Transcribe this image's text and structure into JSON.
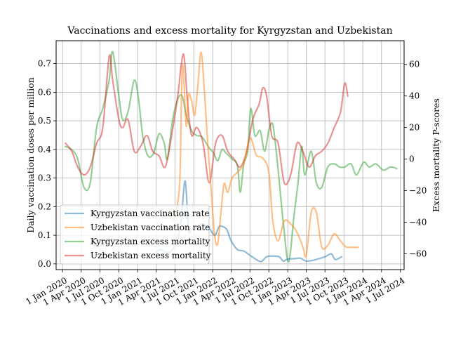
{
  "chart_data": {
    "type": "line",
    "title": "Vaccinations and excess mortality for Kyrgyzstan and Uzbekistan",
    "ylabel_left": "Daily vaccination doses per million",
    "ylabel_right": "Excess mortality P-scores",
    "xlim": [
      "2019-12-01",
      "2024-07-20"
    ],
    "ylim_left": [
      -0.02,
      0.78
    ],
    "ylim_right": [
      -70,
      75
    ],
    "x_ticks": [
      {
        "date": "2020-01-01",
        "label": "1 Jan 2020"
      },
      {
        "date": "2020-04-01",
        "label": "1 Apr 2020"
      },
      {
        "date": "2020-07-01",
        "label": "1 Jul 2020"
      },
      {
        "date": "2020-10-01",
        "label": "1 Oct 2020"
      },
      {
        "date": "2021-01-01",
        "label": "1 Jan 2021"
      },
      {
        "date": "2021-04-01",
        "label": "1 Apr 2021"
      },
      {
        "date": "2021-07-01",
        "label": "1 Jul 2021"
      },
      {
        "date": "2021-10-01",
        "label": "1 Oct 2021"
      },
      {
        "date": "2022-01-01",
        "label": "1 Jan 2022"
      },
      {
        "date": "2022-04-01",
        "label": "1 Apr 2022"
      },
      {
        "date": "2022-07-01",
        "label": "1 Jul 2022"
      },
      {
        "date": "2022-10-01",
        "label": "1 Oct 2022"
      },
      {
        "date": "2023-01-01",
        "label": "1 Jan 2023"
      },
      {
        "date": "2023-04-01",
        "label": "1 Apr 2023"
      },
      {
        "date": "2023-07-01",
        "label": "1 Jul 2023"
      },
      {
        "date": "2023-10-01",
        "label": "1 Oct 2023"
      },
      {
        "date": "2024-01-01",
        "label": "1 Jan 2024"
      },
      {
        "date": "2024-04-01",
        "label": "1 Apr 2024"
      },
      {
        "date": "2024-07-01",
        "label": "1 Jul 2024"
      }
    ],
    "y_ticks_left": [
      {
        "value": 0.0,
        "label": "0.0"
      },
      {
        "value": 0.1,
        "label": "0.1"
      },
      {
        "value": 0.2,
        "label": "0.2"
      },
      {
        "value": 0.3,
        "label": "0.3"
      },
      {
        "value": 0.4,
        "label": "0.4"
      },
      {
        "value": 0.5,
        "label": "0.5"
      },
      {
        "value": 0.6,
        "label": "0.6"
      },
      {
        "value": 0.7,
        "label": "0.7"
      }
    ],
    "y_ticks_right": [
      {
        "value": -60,
        "label": "−60"
      },
      {
        "value": -40,
        "label": "−40"
      },
      {
        "value": -20,
        "label": "−20"
      },
      {
        "value": 0,
        "label": "0"
      },
      {
        "value": 20,
        "label": "20"
      },
      {
        "value": 40,
        "label": "40"
      },
      {
        "value": 60,
        "label": "60"
      }
    ],
    "grid": true,
    "legend": {
      "placement": "lower-left"
    },
    "series": [
      {
        "name": "Kyrgyzstan vaccination rate",
        "axis": "left",
        "color": "#1f77b4",
        "points": [
          [
            "2021-03-20",
            0.03
          ],
          [
            "2021-04-20",
            0.05
          ],
          [
            "2021-05-20",
            0.04
          ],
          [
            "2021-06-20",
            0.05
          ],
          [
            "2021-07-15",
            0.09
          ],
          [
            "2021-08-01",
            0.16
          ],
          [
            "2021-08-20",
            0.29
          ],
          [
            "2021-09-05",
            0.12
          ],
          [
            "2021-09-20",
            0.12
          ],
          [
            "2021-10-15",
            0.13
          ],
          [
            "2021-11-10",
            0.14
          ],
          [
            "2021-12-10",
            0.13
          ],
          [
            "2022-01-10",
            0.1
          ],
          [
            "2022-02-01",
            0.13
          ],
          [
            "2022-02-20",
            0.13
          ],
          [
            "2022-03-10",
            0.12
          ],
          [
            "2022-04-01",
            0.08
          ],
          [
            "2022-05-01",
            0.05
          ],
          [
            "2022-06-01",
            0.045
          ],
          [
            "2022-07-01",
            0.03
          ],
          [
            "2022-08-01",
            0.015
          ],
          [
            "2022-08-25",
            0.008
          ],
          [
            "2022-09-20",
            0.025
          ],
          [
            "2022-10-20",
            0.027
          ],
          [
            "2022-11-20",
            0.025
          ],
          [
            "2022-12-10",
            0.01
          ],
          [
            "2023-01-01",
            0.017
          ],
          [
            "2023-02-01",
            0.018
          ],
          [
            "2023-03-01",
            0.02
          ],
          [
            "2023-04-01",
            0.01
          ],
          [
            "2023-05-01",
            0.012
          ],
          [
            "2023-06-01",
            0.018
          ],
          [
            "2023-07-01",
            0.025
          ],
          [
            "2023-08-01",
            0.035
          ],
          [
            "2023-08-20",
            0.015
          ],
          [
            "2023-09-20",
            0.025
          ]
        ]
      },
      {
        "name": "Uzbekistan vaccination rate",
        "axis": "left",
        "color": "#ff7f0e",
        "points": [
          [
            "2021-06-20",
            0.15
          ],
          [
            "2021-07-10",
            0.2
          ],
          [
            "2021-07-25",
            0.3
          ],
          [
            "2021-08-05",
            0.68
          ],
          [
            "2021-08-15",
            0.62
          ],
          [
            "2021-08-25",
            0.48
          ],
          [
            "2021-09-05",
            0.59
          ],
          [
            "2021-09-20",
            0.57
          ],
          [
            "2021-10-05",
            0.52
          ],
          [
            "2021-10-20",
            0.62
          ],
          [
            "2021-11-05",
            0.74
          ],
          [
            "2021-11-20",
            0.62
          ],
          [
            "2021-12-05",
            0.45
          ],
          [
            "2021-12-25",
            0.25
          ],
          [
            "2022-01-10",
            0.1
          ],
          [
            "2022-01-25",
            0.07
          ],
          [
            "2022-02-10",
            0.18
          ],
          [
            "2022-02-25",
            0.28
          ],
          [
            "2022-03-15",
            0.25
          ],
          [
            "2022-04-05",
            0.3
          ],
          [
            "2022-05-01",
            0.32
          ],
          [
            "2022-06-01",
            0.35
          ],
          [
            "2022-07-01",
            0.44
          ],
          [
            "2022-08-01",
            0.38
          ],
          [
            "2022-09-01",
            0.37
          ],
          [
            "2022-10-01",
            0.32
          ],
          [
            "2022-10-20",
            0.15
          ],
          [
            "2022-11-15",
            0.08
          ],
          [
            "2022-12-15",
            0.15
          ],
          [
            "2023-01-15",
            0.14
          ],
          [
            "2023-02-15",
            0.11
          ],
          [
            "2023-03-15",
            0.06
          ],
          [
            "2023-04-01",
            0.03
          ],
          [
            "2023-04-25",
            0.18
          ],
          [
            "2023-05-20",
            0.18
          ],
          [
            "2023-06-15",
            0.06
          ],
          [
            "2023-07-15",
            0.065
          ],
          [
            "2023-08-15",
            0.105
          ],
          [
            "2023-09-15",
            0.08
          ],
          [
            "2023-10-10",
            0.06
          ],
          [
            "2023-11-10",
            0.058
          ],
          [
            "2023-12-10",
            0.058
          ]
        ]
      },
      {
        "name": "Kyrgyzstan excess mortality",
        "axis": "right",
        "color": "#2ca02c",
        "points": [
          [
            "2020-01-15",
            8
          ],
          [
            "2020-02-15",
            6
          ],
          [
            "2020-03-15",
            0
          ],
          [
            "2020-04-15",
            -18
          ],
          [
            "2020-05-15",
            -15
          ],
          [
            "2020-06-15",
            20
          ],
          [
            "2020-07-15",
            32
          ],
          [
            "2020-08-15",
            50
          ],
          [
            "2020-09-01",
            68
          ],
          [
            "2020-10-01",
            40
          ],
          [
            "2020-10-20",
            25
          ],
          [
            "2020-11-15",
            30
          ],
          [
            "2020-12-15",
            50
          ],
          [
            "2021-01-05",
            38
          ],
          [
            "2021-01-25",
            15
          ],
          [
            "2021-02-20",
            2
          ],
          [
            "2021-03-20",
            4
          ],
          [
            "2021-04-15",
            16
          ],
          [
            "2021-05-10",
            10
          ],
          [
            "2021-05-25",
            0
          ],
          [
            "2021-06-20",
            25
          ],
          [
            "2021-07-15",
            38
          ],
          [
            "2021-08-05",
            40
          ],
          [
            "2021-08-25",
            28
          ],
          [
            "2021-09-20",
            18
          ],
          [
            "2021-10-15",
            15
          ],
          [
            "2021-11-10",
            14
          ],
          [
            "2021-12-15",
            7
          ],
          [
            "2022-01-05",
            4
          ],
          [
            "2022-01-25",
            -1
          ],
          [
            "2022-02-15",
            6
          ],
          [
            "2022-03-05",
            4
          ],
          [
            "2022-04-05",
            0
          ],
          [
            "2022-05-01",
            -4
          ],
          [
            "2022-05-15",
            -21
          ],
          [
            "2022-06-01",
            -3
          ],
          [
            "2022-06-20",
            5
          ],
          [
            "2022-07-05",
            32
          ],
          [
            "2022-07-25",
            15
          ],
          [
            "2022-08-20",
            18
          ],
          [
            "2022-09-10",
            5
          ],
          [
            "2022-10-01",
            18
          ],
          [
            "2022-10-20",
            22
          ],
          [
            "2022-11-10",
            0
          ],
          [
            "2022-12-10",
            -40
          ],
          [
            "2023-01-05",
            -65
          ],
          [
            "2023-02-01",
            -35
          ],
          [
            "2023-02-20",
            -15
          ],
          [
            "2023-03-10",
            8
          ],
          [
            "2023-03-25",
            -10
          ],
          [
            "2023-04-25",
            5
          ],
          [
            "2023-05-20",
            -15
          ],
          [
            "2023-06-15",
            -18
          ],
          [
            "2023-07-15",
            -5
          ],
          [
            "2023-08-15",
            -3
          ],
          [
            "2023-09-10",
            -5
          ],
          [
            "2023-10-05",
            -5
          ],
          [
            "2023-11-05",
            -3
          ],
          [
            "2023-12-01",
            -10
          ],
          [
            "2024-01-05",
            -2
          ],
          [
            "2024-02-01",
            -5
          ],
          [
            "2024-03-05",
            -3
          ],
          [
            "2024-04-10",
            -7
          ],
          [
            "2024-05-15",
            -5
          ],
          [
            "2024-06-15",
            -6
          ]
        ]
      },
      {
        "name": "Uzbekistan excess mortality",
        "axis": "right",
        "color": "#d62728",
        "points": [
          [
            "2020-01-15",
            10
          ],
          [
            "2020-02-15",
            5
          ],
          [
            "2020-03-15",
            -5
          ],
          [
            "2020-04-15",
            -10
          ],
          [
            "2020-05-15",
            -5
          ],
          [
            "2020-06-15",
            10
          ],
          [
            "2020-07-15",
            20
          ],
          [
            "2020-08-15",
            65
          ],
          [
            "2020-09-01",
            50
          ],
          [
            "2020-10-01",
            25
          ],
          [
            "2020-10-20",
            20
          ],
          [
            "2020-11-15",
            25
          ],
          [
            "2020-12-15",
            5
          ],
          [
            "2021-01-15",
            8
          ],
          [
            "2021-02-15",
            15
          ],
          [
            "2021-03-15",
            5
          ],
          [
            "2021-04-15",
            2
          ],
          [
            "2021-05-15",
            -5
          ],
          [
            "2021-06-15",
            15
          ],
          [
            "2021-07-15",
            40
          ],
          [
            "2021-08-01",
            60
          ],
          [
            "2021-08-15",
            65
          ],
          [
            "2021-09-01",
            35
          ],
          [
            "2021-09-20",
            15
          ],
          [
            "2021-10-15",
            20
          ],
          [
            "2021-11-15",
            10
          ],
          [
            "2021-12-15",
            -15
          ],
          [
            "2022-01-15",
            10
          ],
          [
            "2022-02-15",
            15
          ],
          [
            "2022-03-15",
            5
          ],
          [
            "2022-04-15",
            0
          ],
          [
            "2022-05-15",
            -5
          ],
          [
            "2022-06-15",
            5
          ],
          [
            "2022-07-15",
            25
          ],
          [
            "2022-08-15",
            35
          ],
          [
            "2022-09-01",
            45
          ],
          [
            "2022-09-20",
            40
          ],
          [
            "2022-10-15",
            15
          ],
          [
            "2022-11-15",
            10
          ],
          [
            "2022-12-15",
            -15
          ],
          [
            "2023-01-15",
            -10
          ],
          [
            "2023-02-15",
            10
          ],
          [
            "2023-03-15",
            5
          ],
          [
            "2023-04-15",
            -5
          ],
          [
            "2023-05-15",
            2
          ],
          [
            "2023-06-15",
            5
          ],
          [
            "2023-07-15",
            10
          ],
          [
            "2023-08-15",
            20
          ],
          [
            "2023-09-15",
            30
          ],
          [
            "2023-10-05",
            48
          ],
          [
            "2023-10-20",
            40
          ]
        ]
      }
    ]
  }
}
